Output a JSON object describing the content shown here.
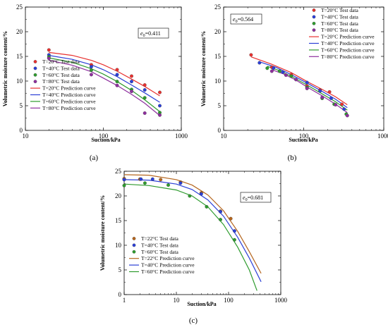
{
  "chart_data": [
    {
      "type": "scatter",
      "panel_label": "(a)",
      "void_ratio_label": "e",
      "void_ratio_sub": "0",
      "void_ratio_value": "=0.411",
      "xlabel": "Suction/kPa",
      "ylabel": "Volumetric moisture content/%",
      "xscale": "log",
      "xlim": [
        10,
        1000
      ],
      "ylim": [
        0,
        25
      ],
      "xticks": [
        "10",
        "100",
        "1000"
      ],
      "yticks": [
        "0",
        "5",
        "10",
        "15",
        "20",
        "25"
      ],
      "legend_position": "bottom-left",
      "series": [
        {
          "name": "T=20°C Test data",
          "kind": "points",
          "color": "#e8312f",
          "x": [
            20,
            70,
            150,
            230,
            340,
            530
          ],
          "y": [
            16.3,
            13.3,
            12.3,
            11.0,
            9.2,
            7.7
          ]
        },
        {
          "name": "T=40°C Test data",
          "kind": "points",
          "color": "#2b3fd6",
          "x": [
            20,
            70,
            150,
            230,
            340,
            530
          ],
          "y": [
            15.3,
            12.9,
            11.3,
            9.9,
            8.2,
            5.0
          ]
        },
        {
          "name": "T=60°C Test data",
          "kind": "points",
          "color": "#2e9b2e",
          "x": [
            20,
            70,
            150,
            230,
            340,
            530
          ],
          "y": [
            14.9,
            12.2,
            9.9,
            8.3,
            6.6,
            3.6
          ]
        },
        {
          "name": "T=80°C Test data",
          "kind": "points",
          "color": "#8e2f9e",
          "x": [
            20,
            70,
            150,
            230,
            340,
            530
          ],
          "y": [
            14.6,
            11.3,
            9.1,
            7.9,
            3.5,
            3.1
          ]
        },
        {
          "name": "T=20°C Prediction curve",
          "kind": "line",
          "color": "#e8312f",
          "x": [
            20,
            40,
            70,
            100,
            150,
            230,
            340,
            530
          ],
          "y": [
            15.8,
            15.2,
            14.2,
            13.3,
            12.0,
            10.4,
            8.9,
            7.0
          ]
        },
        {
          "name": "T=40°C Prediction curve",
          "kind": "line",
          "color": "#2b3fd6",
          "x": [
            20,
            40,
            70,
            100,
            150,
            230,
            340,
            530
          ],
          "y": [
            15.2,
            14.4,
            13.3,
            12.3,
            10.9,
            9.2,
            7.6,
            5.7
          ]
        },
        {
          "name": "T=60°C Prediction curve",
          "kind": "line",
          "color": "#2e9b2e",
          "x": [
            20,
            40,
            70,
            100,
            150,
            230,
            340,
            530
          ],
          "y": [
            14.7,
            13.8,
            12.5,
            11.4,
            9.9,
            8.1,
            6.2,
            3.8
          ]
        },
        {
          "name": "T=80°C Prediction curve",
          "kind": "line",
          "color": "#8e2f9e",
          "x": [
            20,
            40,
            70,
            100,
            150,
            230,
            340,
            530
          ],
          "y": [
            14.2,
            13.2,
            11.9,
            10.6,
            9.1,
            7.3,
            5.5,
            3.0
          ]
        }
      ]
    },
    {
      "type": "scatter",
      "panel_label": "(b)",
      "void_ratio_label": "e",
      "void_ratio_sub": "0",
      "void_ratio_value": "=0.564",
      "xlabel": "Suction/kPa",
      "ylabel": "Volumetric moisture content/%",
      "xscale": "log",
      "xlim": [
        10,
        1000
      ],
      "ylim": [
        0,
        25
      ],
      "xticks": [
        "10",
        "100",
        "1000"
      ],
      "yticks": [
        "0",
        "5",
        "10",
        "15",
        "20",
        "25"
      ],
      "legend_position": "top-right",
      "series": [
        {
          "name": "T=20°C Test data",
          "kind": "points",
          "color": "#e8312f",
          "x": [
            22,
            40,
            70,
            110,
            160,
            210,
            300
          ],
          "y": [
            15.3,
            12.8,
            11.3,
            9.0,
            8.2,
            7.8,
            5.3
          ]
        },
        {
          "name": "T=40°C Test data",
          "kind": "points",
          "color": "#2b3fd6",
          "x": [
            28,
            42,
            55,
            110,
            160,
            220,
            320
          ],
          "y": [
            13.7,
            12.6,
            11.8,
            9.7,
            8.0,
            6.5,
            4.3
          ]
        },
        {
          "name": "T=60°C Test data",
          "kind": "points",
          "color": "#2e9b2e",
          "x": [
            35,
            50,
            70,
            110,
            170,
            240,
            340
          ],
          "y": [
            12.6,
            12.0,
            11.0,
            8.7,
            6.5,
            5.3,
            3.3
          ]
        },
        {
          "name": "T=80°C Test data",
          "kind": "points",
          "color": "#8e2f9e",
          "x": [
            40,
            60,
            80,
            110,
            170,
            250,
            350
          ],
          "y": [
            12.0,
            11.2,
            10.3,
            8.5,
            6.7,
            5.2,
            3.0
          ]
        },
        {
          "name": "T=20°C Prediction curve",
          "kind": "line",
          "color": "#e8312f",
          "x": [
            22,
            40,
            70,
            110,
            170,
            250,
            350
          ],
          "y": [
            14.9,
            13.4,
            11.7,
            9.9,
            8.3,
            6.8,
            5.2
          ]
        },
        {
          "name": "T=40°C Prediction curve",
          "kind": "line",
          "color": "#2b3fd6",
          "x": [
            28,
            45,
            70,
            110,
            170,
            250,
            350
          ],
          "y": [
            13.9,
            12.8,
            11.3,
            9.6,
            7.9,
            6.3,
            4.6
          ]
        },
        {
          "name": "T=60°C Prediction curve",
          "kind": "line",
          "color": "#2e9b2e",
          "x": [
            35,
            50,
            75,
            110,
            170,
            250,
            350
          ],
          "y": [
            13.0,
            12.1,
            10.7,
            9.2,
            7.4,
            5.8,
            4.1
          ]
        },
        {
          "name": "T=80°C Prediction curve",
          "kind": "line",
          "color": "#8e2f9e",
          "x": [
            40,
            55,
            80,
            110,
            170,
            250,
            350
          ],
          "y": [
            12.3,
            11.5,
            10.2,
            8.8,
            7.0,
            5.3,
            3.6
          ]
        }
      ]
    },
    {
      "type": "scatter",
      "panel_label": "(c)",
      "void_ratio_label": "e",
      "void_ratio_sub": "0",
      "void_ratio_value": "=0.681",
      "xlabel": "Suction/kPa",
      "ylabel": "Volumetric moisture content/%",
      "xscale": "log",
      "xlim": [
        1,
        1000
      ],
      "ylim": [
        0,
        25
      ],
      "xticks": [
        "1",
        "10",
        "100",
        "1000"
      ],
      "yticks": [
        "0",
        "5",
        "10",
        "15",
        "20",
        "25"
      ],
      "legend_position": "bottom-left",
      "series": [
        {
          "name": "T=22°C Test data",
          "kind": "points",
          "color": "#b5651d",
          "x": [
            1,
            2,
            5,
            12,
            30,
            70,
            110
          ],
          "y": [
            23.5,
            23.4,
            23.3,
            22.8,
            20.6,
            16.9,
            15.4
          ]
        },
        {
          "name": "T=40°C Test data",
          "kind": "points",
          "color": "#2b3fd6",
          "x": [
            1,
            2.1,
            3.5,
            12,
            30,
            70,
            130
          ],
          "y": [
            23.3,
            23.4,
            23.4,
            22.6,
            20.4,
            16.8,
            12.9
          ]
        },
        {
          "name": "T=60°C Test data",
          "kind": "points",
          "color": "#2e9b2e",
          "x": [
            1,
            2.5,
            7,
            18,
            38,
            70,
            130
          ],
          "y": [
            22.1,
            22.6,
            22.2,
            20.0,
            17.8,
            15.2,
            11.1
          ]
        },
        {
          "name": "T=22°C Prediction curve",
          "kind": "line",
          "color": "#b5651d",
          "x": [
            1,
            3,
            10,
            20,
            40,
            80,
            150,
            250,
            420
          ],
          "y": [
            24.3,
            24.2,
            23.3,
            22.2,
            20.2,
            17.0,
            12.8,
            8.7,
            4.3
          ]
        },
        {
          "name": "T=40°C Prediction curve",
          "kind": "line",
          "color": "#2b3fd6",
          "x": [
            1,
            3,
            10,
            20,
            40,
            80,
            150,
            250,
            420
          ],
          "y": [
            23.3,
            23.2,
            22.4,
            21.3,
            19.2,
            15.9,
            11.6,
            7.4,
            2.6
          ]
        },
        {
          "name": "T=60°C Prediction curve",
          "kind": "line",
          "color": "#2e9b2e",
          "x": [
            1,
            3,
            10,
            20,
            40,
            80,
            150,
            250,
            350
          ],
          "y": [
            22.4,
            22.1,
            21.2,
            20.0,
            17.8,
            14.2,
            9.6,
            5.0,
            0.8
          ]
        }
      ]
    }
  ]
}
